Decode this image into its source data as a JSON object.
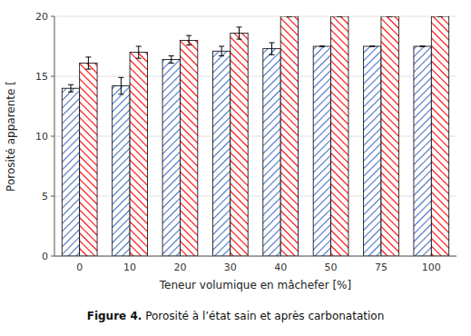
{
  "chart_data": {
    "type": "bar",
    "title": "Figure 4.",
    "subtitle": " Porosité à l’état sain et après carbonatation",
    "xlabel": "Teneur volumique en mâchefer [%]",
    "ylabel": "Porosité apparente [",
    "categories": [
      "0",
      "10",
      "20",
      "30",
      "40",
      "50",
      "75",
      "100"
    ],
    "series": [
      {
        "color": "#4472C4",
        "values": [
          14.0,
          14.2,
          16.4,
          17.1,
          17.3,
          17.5,
          17.5,
          17.5
        ],
        "errors": [
          0.3,
          0.7,
          0.3,
          0.4,
          0.5,
          0.0,
          0.0,
          0.0
        ]
      },
      {
        "color": "#FF0000",
        "values": [
          16.1,
          17.0,
          18.0,
          18.6,
          20.0,
          20.0,
          20.0,
          20.0
        ],
        "errors": [
          0.5,
          0.5,
          0.4,
          0.5,
          0.0,
          0.0,
          0.0,
          0.0
        ]
      }
    ],
    "ylim": [
      0,
      20
    ],
    "yticks": [
      0,
      5,
      10,
      15,
      20
    ],
    "grid": true
  }
}
